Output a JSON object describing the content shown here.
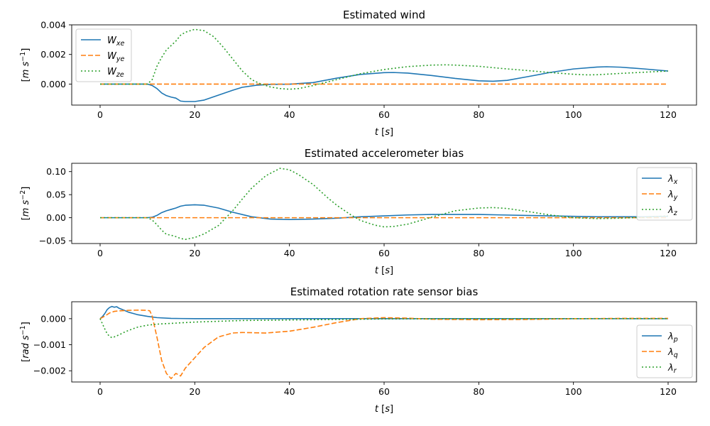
{
  "chart_data": [
    {
      "type": "line",
      "title": "Estimated wind",
      "xlabel": "t [s]",
      "ylabel": "[m s⁻¹]",
      "xlim": [
        -6,
        126
      ],
      "ylim": [
        -0.00142,
        0.004
      ],
      "xticks": [
        "0",
        "20",
        "40",
        "60",
        "80",
        "100",
        "120"
      ],
      "yticks": [
        "0.000",
        "0.002",
        "0.004"
      ],
      "grid": false,
      "legend": "top-left",
      "series": [
        {
          "name": "W_xe",
          "legend_main": "W",
          "legend_sub": "xe",
          "color": "#1f77b4",
          "dash": "solid",
          "x": [
            0,
            6,
            10,
            11,
            12,
            13,
            14,
            15,
            16,
            17,
            18,
            20,
            22,
            25,
            28,
            30,
            33,
            36,
            40,
            45,
            50,
            55,
            60,
            62,
            65,
            70,
            75,
            80,
            83,
            86,
            90,
            95,
            100,
            105,
            107,
            110,
            115,
            120
          ],
          "y": [
            0,
            0,
            0,
            -0.0001,
            -0.0003,
            -0.0006,
            -0.00078,
            -0.00088,
            -0.00095,
            -0.00115,
            -0.00118,
            -0.00118,
            -0.00108,
            -0.00075,
            -0.00042,
            -0.00022,
            -8e-05,
            -2e-05,
            -1e-05,
            0.0001,
            0.0004,
            0.00065,
            0.00077,
            0.00078,
            0.00074,
            0.00058,
            0.00038,
            0.00022,
            0.00019,
            0.00025,
            0.00048,
            0.00078,
            0.00102,
            0.00115,
            0.00117,
            0.00114,
            0.00102,
            0.00088
          ]
        },
        {
          "name": "W_ye",
          "legend_main": "W",
          "legend_sub": "ye",
          "color": "#ff7f0e",
          "dash": "dashed",
          "x": [
            0,
            120
          ],
          "y": [
            0,
            0
          ]
        },
        {
          "name": "W_ze",
          "legend_main": "W",
          "legend_sub": "ze",
          "color": "#2ca02c",
          "dash": "dotted",
          "x": [
            0,
            6,
            10,
            11,
            12,
            13,
            14,
            15,
            16,
            17,
            18,
            20,
            22,
            24,
            26,
            28,
            30,
            32,
            34,
            36,
            38,
            40,
            42,
            45,
            50,
            55,
            60,
            65,
            70,
            73,
            75,
            80,
            85,
            90,
            95,
            100,
            103,
            105,
            110,
            115,
            120
          ],
          "y": [
            0,
            0,
            0,
            0.0003,
            0.0012,
            0.0018,
            0.0023,
            0.0026,
            0.0029,
            0.0033,
            0.0035,
            0.0037,
            0.0036,
            0.0032,
            0.0025,
            0.0017,
            0.0009,
            0.0003,
            0.0,
            -0.0002,
            -0.0003,
            -0.00035,
            -0.0003,
            -0.0001,
            0.0003,
            0.0007,
            0.00098,
            0.00118,
            0.00128,
            0.0013,
            0.00128,
            0.0012,
            0.00105,
            0.00092,
            0.00078,
            0.00066,
            0.00062,
            0.00063,
            0.00072,
            0.0008,
            0.00088
          ]
        }
      ]
    },
    {
      "type": "line",
      "title": "Estimated accelerometer bias",
      "xlabel": "t [s]",
      "ylabel": "[m s⁻²]",
      "xlim": [
        -6,
        126
      ],
      "ylim": [
        -0.056,
        0.118
      ],
      "xticks": [
        "0",
        "20",
        "40",
        "60",
        "80",
        "100",
        "120"
      ],
      "yticks": [
        "−0.05",
        "0.00",
        "0.05",
        "0.10"
      ],
      "grid": false,
      "legend": "top-right",
      "series": [
        {
          "name": "λ_x",
          "legend_main": "λ",
          "legend_sub": "x",
          "color": "#1f77b4",
          "dash": "solid",
          "x": [
            0,
            10,
            11,
            12,
            13,
            14,
            15,
            16,
            17,
            18,
            20,
            22,
            25,
            28,
            32,
            36,
            40,
            45,
            50,
            55,
            60,
            65,
            70,
            75,
            80,
            85,
            90,
            95,
            100,
            105,
            110,
            115,
            120
          ],
          "y": [
            0,
            0,
            0.001,
            0.005,
            0.011,
            0.015,
            0.018,
            0.021,
            0.025,
            0.027,
            0.028,
            0.027,
            0.021,
            0.012,
            0.002,
            -0.003,
            -0.004,
            -0.003,
            -0.001,
            0.002,
            0.004,
            0.006,
            0.007,
            0.007,
            0.007,
            0.006,
            0.005,
            0.004,
            0.003,
            0.002,
            0.002,
            0.002,
            0.003
          ]
        },
        {
          "name": "λ_y",
          "legend_main": "λ",
          "legend_sub": "y",
          "color": "#ff7f0e",
          "dash": "dashed",
          "x": [
            0,
            120
          ],
          "y": [
            0,
            0
          ]
        },
        {
          "name": "λ_z",
          "legend_main": "λ",
          "legend_sub": "z",
          "color": "#2ca02c",
          "dash": "dotted",
          "x": [
            0,
            10,
            11,
            12,
            13,
            14,
            15,
            16,
            17,
            18,
            20,
            22,
            25,
            28,
            30,
            32,
            35,
            38,
            40,
            42,
            45,
            48,
            50,
            53,
            55,
            58,
            60,
            62,
            65,
            70,
            75,
            80,
            83,
            86,
            90,
            95,
            100,
            105,
            110,
            115,
            120
          ],
          "y": [
            0,
            0,
            -0.005,
            -0.015,
            -0.027,
            -0.036,
            -0.038,
            -0.041,
            -0.045,
            -0.047,
            -0.043,
            -0.035,
            -0.017,
            0.015,
            0.04,
            0.064,
            0.091,
            0.107,
            0.104,
            0.093,
            0.072,
            0.044,
            0.027,
            0.006,
            -0.006,
            -0.016,
            -0.02,
            -0.019,
            -0.014,
            0.001,
            0.015,
            0.021,
            0.022,
            0.02,
            0.014,
            0.006,
            0.0,
            -0.002,
            -0.001,
            0.001,
            0.004
          ]
        }
      ]
    },
    {
      "type": "line",
      "title": "Estimated rotation rate sensor bias",
      "xlabel": "t [s]",
      "ylabel": "[rad s⁻¹]",
      "xlim": [
        -6,
        126
      ],
      "ylim": [
        -0.00243,
        0.00065
      ],
      "xticks": [
        "0",
        "20",
        "40",
        "60",
        "80",
        "100",
        "120"
      ],
      "yticks": [
        "−0.002",
        "−0.001",
        "0.000"
      ],
      "grid": false,
      "legend": "lower-right",
      "series": [
        {
          "name": "λ_p",
          "legend_main": "λ",
          "legend_sub": "p",
          "color": "#1f77b4",
          "dash": "solid",
          "x": [
            0,
            0.5,
            1,
            1.5,
            2,
            2.5,
            3,
            3.5,
            4,
            5,
            6,
            7,
            8,
            10,
            12,
            15,
            20,
            30,
            40,
            60,
            80,
            100,
            120
          ],
          "y": [
            0,
            8e-05,
            0.0002,
            0.00035,
            0.00043,
            0.00047,
            0.00044,
            0.00046,
            0.0004,
            0.00033,
            0.00025,
            0.0002,
            0.00015,
            9e-05,
            4e-05,
            1e-05,
            0,
            0,
            0,
            0,
            0,
            0,
            0
          ]
        },
        {
          "name": "λ_q",
          "legend_main": "λ",
          "legend_sub": "q",
          "color": "#ff7f0e",
          "dash": "dashed",
          "x": [
            0,
            1,
            2,
            3,
            4,
            6,
            8,
            10,
            10.5,
            11,
            12,
            13,
            14,
            15,
            16,
            17,
            18,
            20,
            22,
            25,
            28,
            30,
            35,
            40,
            45,
            50,
            55,
            60,
            65,
            70,
            80,
            90,
            100,
            110,
            120
          ],
          "y": [
            0,
            0.0001,
            0.00022,
            0.00028,
            0.0003,
            0.00032,
            0.00033,
            0.00032,
            0.0003,
            0.0001,
            -0.0007,
            -0.0016,
            -0.0021,
            -0.0023,
            -0.0021,
            -0.0022,
            -0.0019,
            -0.0015,
            -0.0011,
            -0.0007,
            -0.00055,
            -0.00053,
            -0.00055,
            -0.00048,
            -0.00033,
            -0.00015,
            0.0,
            4e-05,
            2e-05,
            -2e-05,
            -4e-05,
            -3e-05,
            0.0,
            1e-05,
            1e-05
          ]
        },
        {
          "name": "λ_r",
          "legend_main": "λ",
          "legend_sub": "r",
          "color": "#2ca02c",
          "dash": "dotted",
          "x": [
            0,
            0.5,
            1,
            1.5,
            2,
            2.5,
            3,
            4,
            5,
            6,
            8,
            10,
            12,
            15,
            20,
            30,
            40,
            60,
            80,
            100,
            120
          ],
          "y": [
            0,
            -0.0002,
            -0.0004,
            -0.00058,
            -0.00068,
            -0.00073,
            -0.0007,
            -0.00062,
            -0.00053,
            -0.00045,
            -0.00032,
            -0.00025,
            -0.00021,
            -0.00018,
            -0.00013,
            -7e-05,
            -5e-05,
            -1e-05,
            0,
            0,
            0
          ]
        }
      ]
    }
  ]
}
